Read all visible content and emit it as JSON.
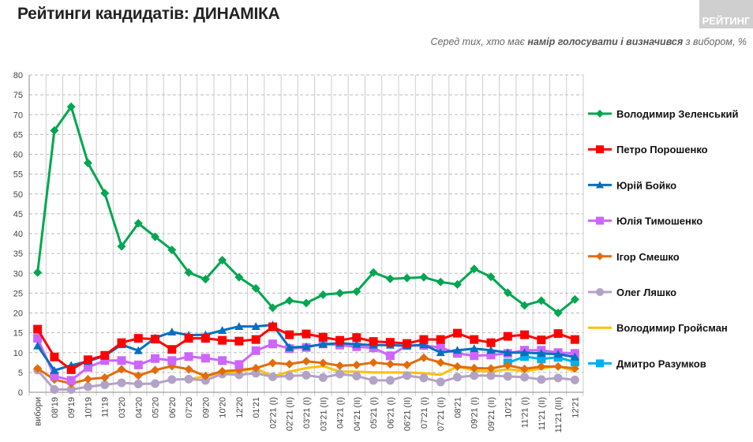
{
  "header": {
    "title": "Рейтинги кандидатів: ДИНАМІКА",
    "logo": "РЕЙТИНГ",
    "subtitle_pre": "Серед тих, хто має ",
    "subtitle_bold": "намір голосувати і визначився",
    "subtitle_post": " з вибором, %"
  },
  "chart_data": {
    "type": "line",
    "title": "Рейтинги кандидатів: ДИНАМІКА",
    "ylim": [
      0,
      80
    ],
    "yticks": [
      0,
      5,
      10,
      15,
      20,
      25,
      30,
      35,
      40,
      45,
      50,
      55,
      60,
      65,
      70,
      75,
      80
    ],
    "grid": true,
    "legend_placement": "right",
    "categories": [
      "вибори",
      "08'19",
      "09'19",
      "10'19",
      "11'19",
      "03'20",
      "04'20",
      "05'20",
      "06'20",
      "07'20",
      "09'20",
      "10'20",
      "12'20",
      "01'21",
      "02'21 (I)",
      "02'21 (II)",
      "03'21 (I)",
      "03'21 (II)",
      "04'21 (I)",
      "04'21 (II)",
      "05'21 (I)",
      "06'21 (I)",
      "06'21 (II)",
      "07'21 (I)",
      "07'21 (II)",
      "08'21",
      "09'21 (I)",
      "09'21 (II)",
      "10'21",
      "11'21 (I)",
      "11'21 (II)",
      "11'21 (III)",
      "12'21"
    ],
    "series": [
      {
        "name": "Володимир Зеленський",
        "color": "#00a650",
        "marker": "diamond",
        "values": [
          30.2,
          66,
          72,
          57.8,
          50.2,
          36.8,
          42.6,
          39.2,
          35.9,
          30.2,
          28.5,
          33.3,
          29,
          26.2,
          21.3,
          23.1,
          22.5,
          24.6,
          25,
          25.4,
          30.2,
          28.6,
          28.8,
          29,
          27.8,
          27.2,
          31.1,
          29.1,
          25.1,
          21.9,
          23.1,
          20,
          23.4
        ]
      },
      {
        "name": "Петро Порошенко",
        "color": "#ff0000",
        "marker": "square",
        "values": [
          15.9,
          8.9,
          5.7,
          8.2,
          9.3,
          12.5,
          13.6,
          13.4,
          10.8,
          13.6,
          13.6,
          13.1,
          12.9,
          13.3,
          16.5,
          14.5,
          14.7,
          13.9,
          13.1,
          13.8,
          12.8,
          12.6,
          12.3,
          13.3,
          13.3,
          14.9,
          13.3,
          12.5,
          14.1,
          14.5,
          13.2,
          14.8,
          13.3
        ]
      },
      {
        "name": "Юрій Бойко",
        "color": "#0070c0",
        "marker": "triangle",
        "values": [
          11.7,
          5.5,
          6.8,
          7.8,
          9.2,
          12.0,
          10.5,
          13.7,
          15.2,
          14.4,
          14.5,
          15.6,
          16.6,
          16.6,
          17.0,
          11.3,
          11.5,
          12.1,
          12.4,
          12.1,
          11.9,
          11.9,
          11.7,
          12.0,
          10.0,
          10.6,
          11.0,
          10.6,
          10.0,
          10.0,
          9.8,
          9.6,
          8.9
        ]
      },
      {
        "name": "Юлія Тимошенко",
        "color": "#cc66ff",
        "marker": "square",
        "values": [
          13.6,
          4.1,
          3.0,
          6.3,
          8.0,
          8.0,
          6.9,
          8.5,
          8.0,
          9.0,
          8.6,
          8.0,
          7.0,
          10.5,
          12.2,
          11.0,
          11.3,
          12.2,
          11.9,
          11.5,
          11.2,
          9.2,
          11.8,
          11.8,
          11.3,
          9.8,
          9.2,
          9.4,
          9.8,
          10.6,
          10.6,
          10.0,
          9.8
        ]
      },
      {
        "name": "Ігор Смешко",
        "color": "#e36c0a",
        "marker": "diamond",
        "values": [
          6.0,
          3.2,
          2.2,
          3.3,
          3.7,
          5.8,
          4.2,
          5.6,
          6.6,
          5.8,
          4.1,
          5.3,
          5.6,
          6.1,
          7.4,
          7.1,
          7.8,
          7.4,
          6.7,
          6.9,
          7.5,
          7.1,
          6.9,
          8.7,
          7.5,
          6.5,
          6.1,
          6.0,
          6.8,
          5.9,
          6.5,
          6.5,
          6.0
        ]
      },
      {
        "name": "Олег Ляшко",
        "color": "#b3a2c7",
        "marker": "circle",
        "values": [
          5.6,
          0.7,
          0.7,
          1.4,
          1.9,
          2.4,
          2.1,
          2.2,
          3.2,
          3.3,
          3.0,
          4.6,
          4.4,
          4.8,
          3.9,
          4.1,
          4.3,
          3.7,
          4.6,
          4.1,
          3.0,
          3.0,
          4.2,
          3.6,
          2.6,
          3.8,
          4.2,
          4.2,
          4.0,
          3.8,
          3.2,
          3.6,
          3.1
        ]
      },
      {
        "name": "Володимир Гройсман",
        "color": "#ffc000",
        "marker": "none",
        "values": [
          null,
          null,
          null,
          null,
          null,
          null,
          null,
          null,
          null,
          3.3,
          4.0,
          4.8,
          5.3,
          6.0,
          4.0,
          5.2,
          6.1,
          6.6,
          5.2,
          5.2,
          5.0,
          5.0,
          5.0,
          4.8,
          4.4,
          6.5,
          5.5,
          5.2,
          5.8,
          5.3,
          6.0,
          6.6,
          5.3
        ]
      },
      {
        "name": "Дмитро Разумков",
        "color": "#00b0f0",
        "marker": "square",
        "values": [
          null,
          null,
          null,
          null,
          null,
          null,
          null,
          null,
          null,
          null,
          null,
          null,
          null,
          null,
          null,
          null,
          null,
          null,
          null,
          null,
          null,
          null,
          null,
          null,
          null,
          null,
          null,
          null,
          7.4,
          9.0,
          8.4,
          8.8,
          7.6
        ]
      }
    ]
  }
}
